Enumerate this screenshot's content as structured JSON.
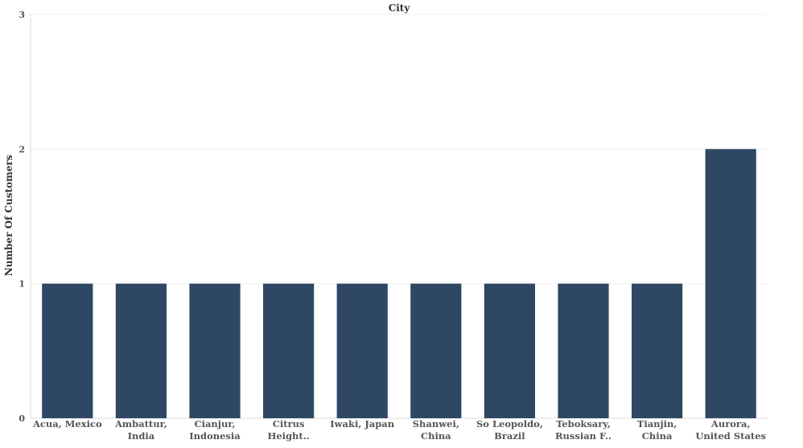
{
  "chart_data": {
    "type": "bar",
    "title": "City",
    "xlabel": "",
    "ylabel": "Number Of Customers",
    "categories": [
      [
        "Acua, Mexico"
      ],
      [
        "Ambattur,",
        "India"
      ],
      [
        "Cianjur,",
        "Indonesia"
      ],
      [
        "Citrus",
        "Height.."
      ],
      [
        "Iwaki, Japan"
      ],
      [
        "Shanwei,",
        "China"
      ],
      [
        "So Leopoldo,",
        "Brazil"
      ],
      [
        "Teboksary,",
        "Russian F.."
      ],
      [
        "Tianjin,",
        "China"
      ],
      [
        "Aurora,",
        "United States"
      ]
    ],
    "values": [
      1,
      1,
      1,
      1,
      1,
      1,
      1,
      1,
      1,
      2
    ],
    "ylim": [
      0,
      3
    ],
    "yticks": [
      0,
      1,
      2,
      3
    ],
    "grid": true,
    "bar_color": "#2e4763"
  }
}
